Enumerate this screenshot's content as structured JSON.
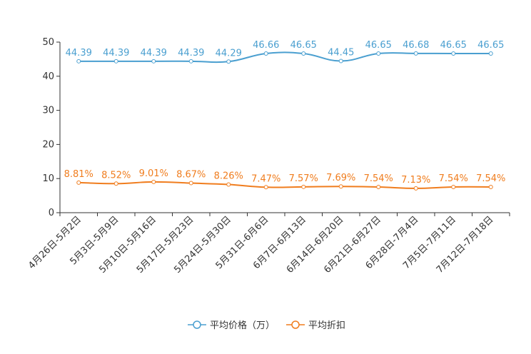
{
  "chart_data": {
    "type": "line",
    "title": "",
    "xlabel": "",
    "ylabel": "",
    "ylim": [
      0,
      50
    ],
    "yticks": [
      0,
      10,
      20,
      30,
      40,
      50
    ],
    "grid": false,
    "legend_position": "bottom-center",
    "categories": [
      "4月26日-5月2日",
      "5月3日-5月9日",
      "5月10日-5月16日",
      "5月17日-5月23日",
      "5月24日-5月30日",
      "5月31日-6月6日",
      "6月7日-6月13日",
      "6月14日-6月20日",
      "6月21日-6月27日",
      "6月28日-7月4日",
      "7月5日-7月11日",
      "7月12日-7月18日"
    ],
    "series": [
      {
        "name": "平均价格（万）",
        "color": "#4a9fd0",
        "values": [
          44.39,
          44.39,
          44.39,
          44.39,
          44.29,
          46.66,
          46.65,
          44.45,
          46.65,
          46.68,
          46.65,
          46.65
        ],
        "labels": [
          "44.39",
          "44.39",
          "44.39",
          "44.39",
          "44.29",
          "46.66",
          "46.65",
          "44.45",
          "46.65",
          "46.68",
          "46.65",
          "46.65"
        ]
      },
      {
        "name": "平均折扣",
        "color": "#f07d1e",
        "values": [
          8.81,
          8.52,
          9.01,
          8.67,
          8.26,
          7.47,
          7.57,
          7.69,
          7.54,
          7.13,
          7.54,
          7.54
        ],
        "labels": [
          "8.81%",
          "8.52%",
          "9.01%",
          "8.67%",
          "8.26%",
          "7.47%",
          "7.57%",
          "7.69%",
          "7.54%",
          "7.13%",
          "7.54%",
          "7.54%"
        ]
      }
    ]
  }
}
